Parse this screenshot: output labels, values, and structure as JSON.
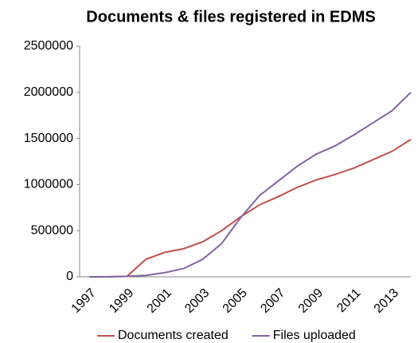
{
  "chart_data": {
    "type": "line",
    "title": "Documents & files registered in EDMS",
    "categories": [
      "1997",
      null,
      "1999",
      null,
      "2001",
      null,
      "2003",
      null,
      "2005",
      null,
      "2007",
      null,
      "2009",
      null,
      "2011",
      null,
      "2013",
      null
    ],
    "series": [
      {
        "name": "Documents created",
        "color": "#c0504d",
        "values": [
          0,
          0,
          5000,
          190000,
          265000,
          305000,
          380000,
          500000,
          650000,
          780000,
          870000,
          970000,
          1050000,
          1110000,
          1180000,
          1270000,
          1360000,
          1490000
        ]
      },
      {
        "name": "Files uploaded",
        "color": "#8064a2",
        "values": [
          0,
          0,
          5000,
          15000,
          45000,
          90000,
          190000,
          360000,
          640000,
          880000,
          1040000,
          1200000,
          1330000,
          1420000,
          1540000,
          1670000,
          1800000,
          2000000
        ]
      }
    ],
    "ylim": [
      0,
      2500000
    ],
    "yticks": [
      0,
      500000,
      1000000,
      1500000,
      2000000,
      2500000
    ],
    "grid": false,
    "legend": "bottom"
  }
}
